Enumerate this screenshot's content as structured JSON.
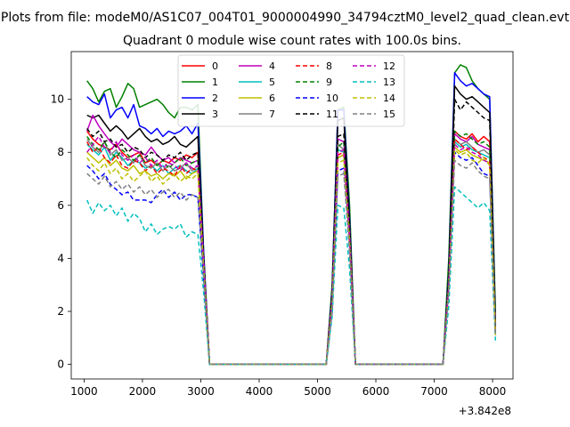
{
  "chart_data": {
    "type": "line",
    "suptitle": "Plots from file: modeM0/AS1C07_004T01_9000004990_34794cztM0_level2_quad_clean.evt",
    "title": "Quadrant 0 module wise count rates with 100.0s bins.",
    "xlabel": "",
    "ylabel": "",
    "xlim": [
      780,
      8350
    ],
    "ylim": [
      -0.55,
      11.8
    ],
    "x_offset_label": "+3.842e8",
    "x_ticks": [
      1000,
      2000,
      3000,
      4000,
      5000,
      6000,
      7000,
      8000
    ],
    "y_ticks": [
      0,
      2,
      4,
      6,
      8,
      10
    ],
    "legend": {
      "position": "top-center",
      "ncol": 4
    },
    "x": [
      1050,
      1150,
      1250,
      1350,
      1450,
      1550,
      1650,
      1750,
      1850,
      1950,
      2050,
      2150,
      2250,
      2350,
      2450,
      2550,
      2650,
      2750,
      2850,
      2950,
      3050,
      3150,
      3250,
      5050,
      5150,
      5250,
      5350,
      5450,
      5550,
      5650,
      5750,
      7050,
      7150,
      7250,
      7350,
      7450,
      7550,
      7650,
      7750,
      7850,
      7950,
      8050
    ],
    "series": [
      {
        "name": "0",
        "color": "#ff0000",
        "dash": false,
        "values": [
          8.8,
          8.5,
          8.3,
          8.2,
          8.1,
          8.3,
          8.0,
          7.8,
          7.9,
          8.0,
          7.6,
          7.7,
          7.5,
          7.7,
          7.6,
          7.8,
          7.7,
          7.9,
          7.8,
          8.0,
          4.0,
          0,
          0,
          0,
          0,
          2.0,
          7.8,
          7.9,
          5.0,
          0,
          0,
          0,
          0,
          3.0,
          8.8,
          8.6,
          8.5,
          8.7,
          8.4,
          8.6,
          8.4,
          1.5
        ]
      },
      {
        "name": "1",
        "color": "#008000",
        "dash": false,
        "values": [
          10.7,
          10.4,
          9.9,
          10.3,
          10.4,
          9.7,
          10.1,
          10.6,
          10.4,
          9.7,
          9.8,
          9.9,
          10.0,
          9.8,
          9.5,
          9.3,
          9.7,
          9.7,
          9.6,
          9.8,
          4.2,
          0,
          0,
          0,
          0,
          3.0,
          9.6,
          9.7,
          6.0,
          0,
          0,
          0,
          0,
          4.0,
          11.0,
          11.3,
          11.2,
          10.7,
          10.4,
          10.2,
          10.0,
          2.0
        ]
      },
      {
        "name": "2",
        "color": "#0000ff",
        "dash": false,
        "values": [
          10.1,
          9.9,
          9.8,
          10.2,
          9.3,
          9.6,
          9.7,
          9.3,
          9.8,
          9.0,
          8.9,
          8.7,
          8.9,
          8.6,
          8.8,
          8.7,
          8.8,
          9.0,
          8.7,
          9.1,
          4.2,
          0,
          0,
          0,
          0,
          2.8,
          9.6,
          9.6,
          5.5,
          0,
          0,
          0,
          0,
          3.5,
          11.0,
          10.7,
          10.5,
          10.6,
          10.4,
          10.2,
          10.1,
          1.5
        ]
      },
      {
        "name": "3",
        "color": "#000000",
        "dash": false,
        "values": [
          9.4,
          9.3,
          9.4,
          9.1,
          8.8,
          9.0,
          8.8,
          8.5,
          8.7,
          8.9,
          8.6,
          8.4,
          8.5,
          8.3,
          8.4,
          8.6,
          8.3,
          8.2,
          8.4,
          8.6,
          4.0,
          0,
          0,
          0,
          0,
          2.7,
          9.2,
          9.3,
          5.3,
          0,
          0,
          0,
          0,
          3.4,
          10.5,
          10.2,
          10.0,
          10.1,
          9.9,
          9.7,
          9.5,
          1.5
        ]
      },
      {
        "name": "4",
        "color": "#bf00bf",
        "dash": false,
        "values": [
          8.8,
          9.4,
          9.0,
          8.7,
          8.4,
          8.2,
          8.5,
          8.3,
          8.1,
          8.0,
          7.9,
          8.2,
          7.9,
          7.7,
          7.8,
          7.6,
          7.8,
          7.7,
          7.6,
          7.7,
          3.9,
          0,
          0,
          0,
          0,
          2.5,
          8.5,
          8.4,
          5.0,
          0,
          0,
          0,
          0,
          3.1,
          8.7,
          8.5,
          8.4,
          8.6,
          8.3,
          8.2,
          8.1,
          1.3
        ]
      },
      {
        "name": "5",
        "color": "#00bfbf",
        "dash": false,
        "values": [
          8.3,
          8.1,
          7.9,
          8.2,
          7.7,
          8.0,
          7.8,
          7.5,
          7.7,
          7.6,
          7.4,
          7.5,
          7.3,
          7.5,
          7.2,
          7.4,
          7.5,
          7.3,
          7.2,
          7.4,
          3.7,
          0,
          0,
          0,
          0,
          2.4,
          8.1,
          8.0,
          4.8,
          0,
          0,
          0,
          0,
          3.0,
          8.4,
          8.2,
          8.3,
          8.1,
          8.0,
          7.9,
          7.8,
          1.2
        ]
      },
      {
        "name": "6",
        "color": "#bfbf00",
        "dash": false,
        "values": [
          8.0,
          7.8,
          7.6,
          7.8,
          7.5,
          7.7,
          7.4,
          7.3,
          7.5,
          7.2,
          7.3,
          7.1,
          7.2,
          7.0,
          7.2,
          7.1,
          7.3,
          7.0,
          7.2,
          7.3,
          3.6,
          0,
          0,
          0,
          0,
          2.3,
          7.8,
          7.9,
          4.6,
          0,
          0,
          0,
          0,
          2.9,
          8.2,
          8.0,
          8.1,
          7.9,
          7.8,
          7.7,
          7.6,
          1.2
        ]
      },
      {
        "name": "7",
        "color": "#808080",
        "dash": false,
        "values": [
          8.5,
          8.2,
          8.0,
          8.4,
          7.9,
          8.1,
          7.7,
          7.8,
          7.6,
          7.9,
          7.5,
          7.4,
          7.6,
          7.3,
          7.5,
          7.3,
          7.4,
          7.6,
          7.3,
          7.5,
          3.8,
          0,
          0,
          0,
          0,
          2.5,
          8.3,
          8.1,
          4.9,
          0,
          0,
          0,
          0,
          3.1,
          8.5,
          8.3,
          8.4,
          8.2,
          8.0,
          8.1,
          7.9,
          1.3
        ]
      },
      {
        "name": "8",
        "color": "#ff0000",
        "dash": true,
        "values": [
          8.4,
          8.0,
          8.2,
          7.8,
          7.6,
          7.9,
          7.5,
          7.4,
          7.7,
          7.6,
          7.3,
          7.5,
          7.2,
          7.4,
          7.3,
          7.1,
          7.5,
          7.2,
          7.4,
          7.3,
          3.7,
          0,
          0,
          0,
          0,
          2.4,
          7.9,
          8.0,
          4.7,
          0,
          0,
          0,
          0,
          3.0,
          8.5,
          8.3,
          8.1,
          8.2,
          8.0,
          7.8,
          7.7,
          1.2
        ]
      },
      {
        "name": "9",
        "color": "#008000",
        "dash": true,
        "values": [
          8.6,
          8.3,
          8.1,
          8.4,
          8.0,
          7.8,
          8.1,
          7.9,
          7.7,
          7.9,
          7.6,
          7.8,
          7.5,
          7.7,
          7.4,
          7.6,
          7.8,
          7.5,
          7.6,
          7.7,
          3.9,
          0,
          0,
          0,
          0,
          2.5,
          8.2,
          8.4,
          4.9,
          0,
          0,
          0,
          0,
          3.1,
          8.8,
          8.6,
          8.7,
          8.5,
          8.3,
          8.4,
          8.2,
          1.3
        ]
      },
      {
        "name": "10",
        "color": "#0000ff",
        "dash": true,
        "values": [
          7.5,
          7.3,
          7.0,
          7.2,
          6.8,
          6.6,
          6.4,
          6.5,
          6.2,
          6.2,
          6.2,
          6.1,
          6.4,
          6.6,
          6.3,
          6.5,
          6.2,
          6.4,
          6.4,
          6.3,
          3.2,
          0,
          0,
          0,
          0,
          2.0,
          7.3,
          7.4,
          4.3,
          0,
          0,
          0,
          0,
          2.7,
          8.0,
          7.8,
          7.7,
          7.8,
          7.5,
          7.2,
          7.1,
          1.1
        ]
      },
      {
        "name": "11",
        "color": "#000000",
        "dash": true,
        "values": [
          8.9,
          8.6,
          8.8,
          8.4,
          8.5,
          8.2,
          8.3,
          8.0,
          8.2,
          8.1,
          7.8,
          8.0,
          7.9,
          7.7,
          7.9,
          7.8,
          8.0,
          7.7,
          7.9,
          8.0,
          4.0,
          0,
          0,
          0,
          0,
          2.6,
          8.6,
          8.7,
          5.1,
          0,
          0,
          0,
          0,
          3.2,
          10.0,
          9.6,
          9.9,
          9.7,
          9.5,
          9.3,
          9.2,
          1.4
        ]
      },
      {
        "name": "12",
        "color": "#bf00bf",
        "dash": true,
        "values": [
          8.0,
          8.3,
          8.6,
          8.2,
          8.0,
          8.4,
          7.9,
          7.7,
          7.9,
          7.6,
          7.8,
          7.5,
          7.7,
          7.4,
          7.6,
          7.5,
          7.3,
          7.6,
          7.4,
          7.5,
          3.8,
          0,
          0,
          0,
          0,
          2.4,
          8.0,
          8.1,
          4.8,
          0,
          0,
          0,
          0,
          3.0,
          8.3,
          8.1,
          8.2,
          8.0,
          7.9,
          7.7,
          7.6,
          1.2
        ]
      },
      {
        "name": "13",
        "color": "#00bfbf",
        "dash": true,
        "values": [
          6.2,
          5.7,
          6.1,
          5.8,
          6.0,
          5.6,
          5.9,
          5.4,
          5.7,
          5.5,
          5.0,
          5.3,
          4.9,
          5.1,
          5.2,
          5.1,
          5.3,
          4.8,
          5.0,
          4.9,
          2.7,
          0,
          0,
          0,
          0,
          1.8,
          6.0,
          5.9,
          3.6,
          0,
          0,
          0,
          0,
          2.2,
          6.7,
          6.5,
          6.3,
          6.1,
          5.9,
          6.1,
          5.8,
          0.9
        ]
      },
      {
        "name": "14",
        "color": "#bfbf00",
        "dash": true,
        "values": [
          7.8,
          7.5,
          7.3,
          7.6,
          7.2,
          7.4,
          7.0,
          7.2,
          6.9,
          7.1,
          7.3,
          6.9,
          7.1,
          6.8,
          7.0,
          7.2,
          6.9,
          7.1,
          7.0,
          7.2,
          3.6,
          0,
          0,
          0,
          0,
          2.3,
          7.6,
          7.7,
          4.6,
          0,
          0,
          0,
          0,
          2.9,
          8.1,
          7.9,
          8.0,
          7.7,
          7.6,
          7.8,
          7.5,
          1.1
        ]
      },
      {
        "name": "15",
        "color": "#808080",
        "dash": true,
        "values": [
          7.2,
          7.0,
          6.8,
          7.1,
          6.7,
          6.9,
          6.6,
          6.8,
          6.5,
          6.7,
          6.4,
          6.6,
          6.3,
          6.5,
          6.6,
          6.3,
          6.5,
          6.2,
          6.4,
          6.3,
          3.3,
          0,
          0,
          0,
          0,
          2.1,
          7.1,
          7.2,
          4.3,
          0,
          0,
          0,
          0,
          2.8,
          7.7,
          7.5,
          7.4,
          7.6,
          7.3,
          7.1,
          7.0,
          1.1
        ]
      }
    ]
  }
}
